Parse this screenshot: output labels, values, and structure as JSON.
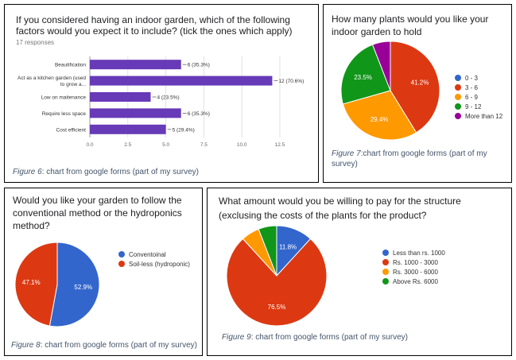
{
  "chart_data": [
    {
      "type": "bar",
      "orientation": "horizontal",
      "title": "If you considered having an indoor garden, which of the following factors would you expect it to include? (tick the ones which apply)",
      "responses": "17 responses",
      "categories": [
        "Beautification",
        "Act as a kitchen garden (used to grow a...",
        "Low on maitenance",
        "Require less space",
        "Cost efficient"
      ],
      "category_lines": [
        [
          "Beautification"
        ],
        [
          "Act as a kitchen garden (used",
          "to grow a..."
        ],
        [
          "Low on maitenance"
        ],
        [
          "Require less space"
        ],
        [
          "Cost efficient"
        ]
      ],
      "values": [
        6,
        12,
        4,
        6,
        5
      ],
      "data_labels": [
        "6 (35.3%)",
        "12 (70.6%)",
        "4 (23.5%)",
        "6 (35.3%)",
        "5 (29.4%)"
      ],
      "xlim": [
        0,
        12.5
      ],
      "xticks": [
        "0.0",
        "2.5",
        "5.0",
        "7.5",
        "10.0",
        "12.5"
      ],
      "grid": true,
      "bar_color": "#673ab7",
      "caption": {
        "figure": "Figure 6",
        "text": ": chart from google forms (part of my survey)"
      }
    },
    {
      "type": "pie",
      "title": "How many plants would you like your indoor garden to hold",
      "slices": [
        {
          "label": "0 - 3",
          "percent": 0,
          "color": "#3366cc"
        },
        {
          "label": "3 - 6",
          "percent": 41.2,
          "color": "#dc3912",
          "text": "41.2%"
        },
        {
          "label": "6 - 9",
          "percent": 29.4,
          "color": "#ff9900",
          "text": "29.4%"
        },
        {
          "label": "9 - 12",
          "percent": 23.5,
          "color": "#109618",
          "text": "23.5%"
        },
        {
          "label": "More than 12",
          "percent": 5.9,
          "color": "#990099"
        }
      ],
      "legend_position": "right",
      "caption": {
        "figure": "Figure 7",
        "text": ":chart from google forms (part of my survey)"
      }
    },
    {
      "type": "pie",
      "title": "Would you like your garden to follow the conventional method or the hydroponics method?",
      "slices": [
        {
          "label": "Conventoinal",
          "percent": 52.9,
          "color": "#3366cc",
          "text": "52.9%"
        },
        {
          "label": "Soil-less (hydroponic)",
          "percent": 47.1,
          "color": "#dc3912",
          "text": "47.1%"
        }
      ],
      "legend_position": "right",
      "caption": {
        "figure": "Figure 8",
        "text": ": chart from google forms (part of my survey)"
      }
    },
    {
      "type": "pie",
      "title": "What amount would you be willing to pay for the structure (exclusing the costs of the plants for the product?",
      "slices": [
        {
          "label": "Less than rs. 1000",
          "percent": 11.8,
          "color": "#3366cc",
          "text": "11.8%"
        },
        {
          "label": "Rs. 1000 - 3000",
          "percent": 76.5,
          "color": "#dc3912",
          "text": "76.5%"
        },
        {
          "label": "Rs. 3000 - 6000",
          "percent": 5.9,
          "color": "#ff9900"
        },
        {
          "label": "Above Rs. 6000",
          "percent": 5.9,
          "color": "#109618"
        }
      ],
      "legend_position": "right",
      "caption": {
        "figure": "Figure 9",
        "text": ": chart from google forms (part of my survey)"
      }
    }
  ]
}
